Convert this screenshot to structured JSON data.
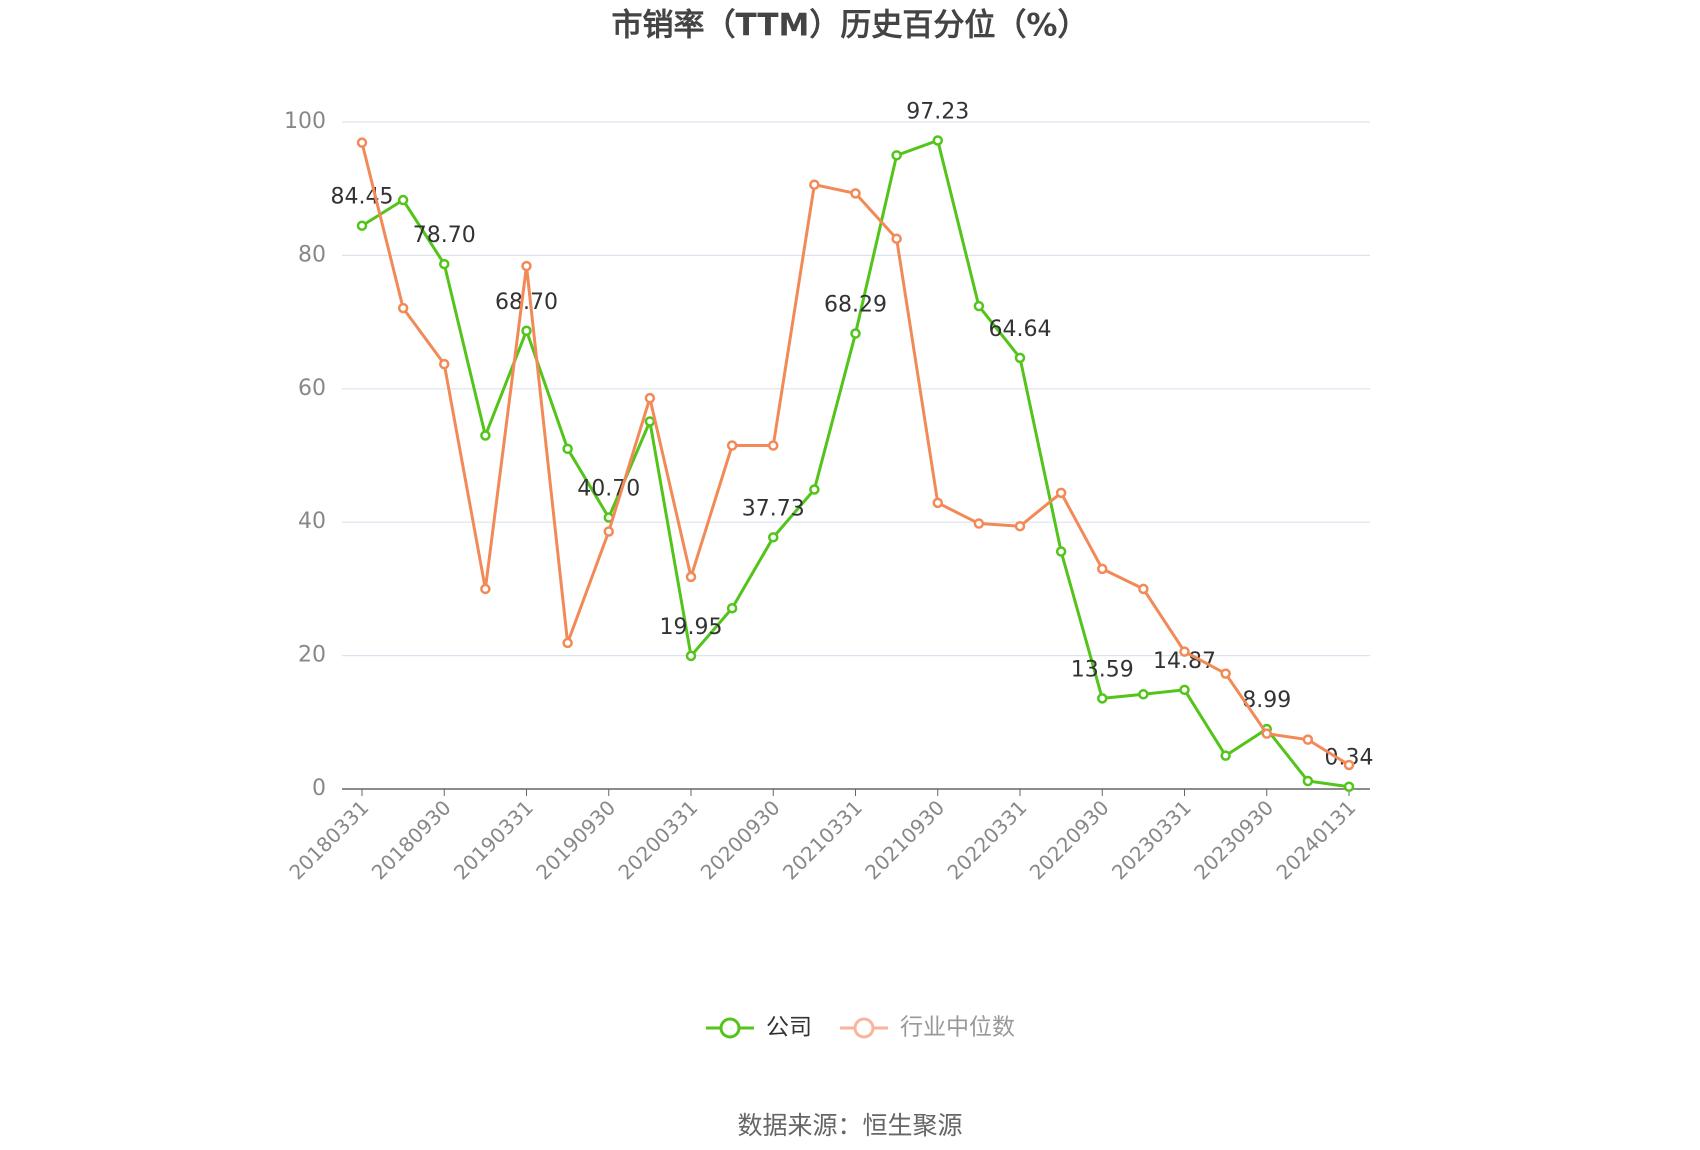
{
  "chart_data": {
    "type": "line",
    "title": "市销率（TTM）历史百分位（%）",
    "categories": [
      "20180331",
      null,
      "20180930",
      null,
      "20190331",
      null,
      "20190930",
      null,
      "20200331",
      null,
      "20200930",
      null,
      "20210331",
      null,
      "20210930",
      null,
      "20220331",
      null,
      "20220930",
      null,
      "20230331",
      null,
      "20230930",
      null,
      "20240131"
    ],
    "series": [
      {
        "name": "公司",
        "color": "#52c41a",
        "values": [
          84.45,
          88.3,
          78.7,
          53.0,
          68.7,
          51.0,
          40.7,
          55.1,
          19.95,
          27.1,
          37.73,
          44.9,
          68.29,
          95.0,
          97.23,
          72.4,
          64.64,
          35.6,
          13.59,
          14.2,
          14.87,
          5.0,
          8.99,
          1.2,
          0.34
        ],
        "value_labels": [
          "84.45",
          null,
          "78.70",
          null,
          "68.70",
          null,
          "40.70",
          null,
          "19.95",
          null,
          "37.73",
          null,
          "68.29",
          null,
          "97.23",
          null,
          "64.64",
          null,
          "13.59",
          null,
          "14.87",
          null,
          "8.99",
          null,
          "0.34"
        ]
      },
      {
        "name": "行业中位数",
        "color": "#f28a58",
        "values": [
          96.9,
          72.1,
          63.7,
          30.0,
          78.4,
          21.9,
          38.6,
          58.6,
          31.8,
          51.5,
          51.5,
          90.6,
          89.3,
          82.5,
          42.9,
          39.8,
          39.4,
          44.4,
          33.0,
          30.0,
          20.6,
          17.3,
          8.3,
          7.4,
          3.6
        ]
      }
    ],
    "ylim": [
      0,
      100
    ],
    "yticks": [
      0,
      20,
      40,
      60,
      80,
      100
    ],
    "grid": true,
    "legend": "bottom",
    "source": "数据来源：恒生聚源"
  }
}
